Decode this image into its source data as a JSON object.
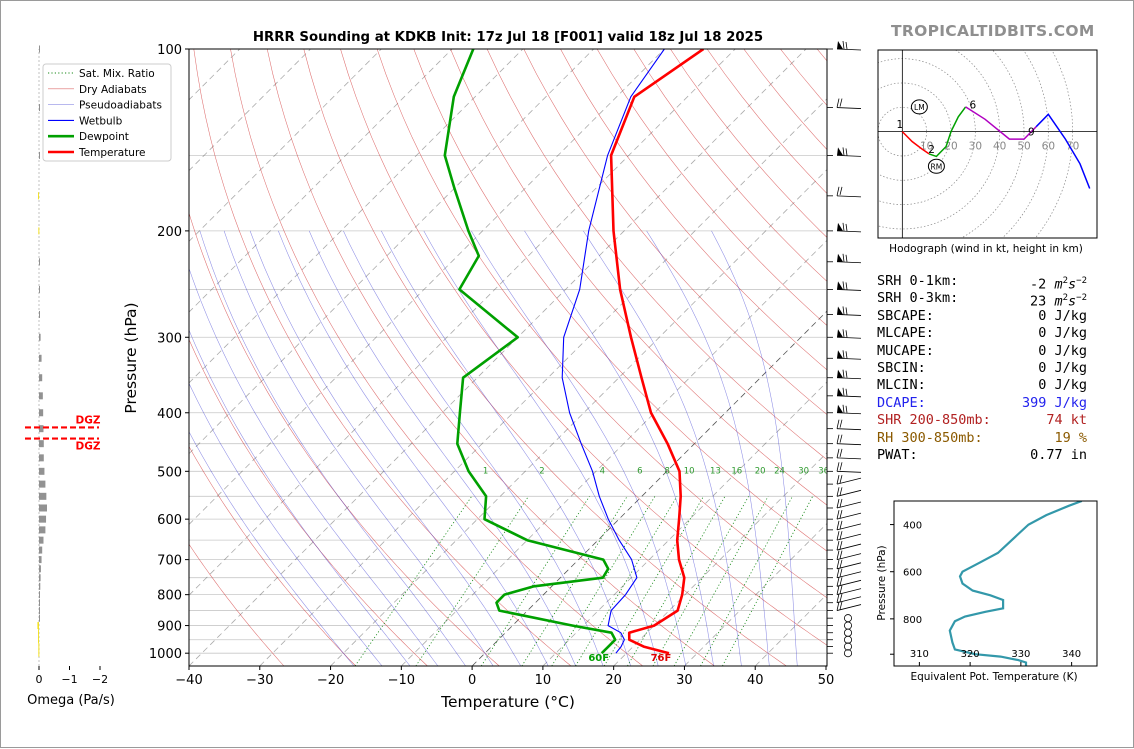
{
  "chart_data": [
    {
      "type": "skew-t",
      "title": "HRRR Sounding at KDKB Init: 17z Jul 18 [F001] valid 18z Jul 18 2025",
      "xlabel": "Temperature (°C)",
      "ylabel": "Pressure (hPa)",
      "xlim": [
        -40,
        50
      ],
      "ylim": [
        1050,
        100
      ],
      "xticks": [
        "−40",
        "−30",
        "−20",
        "−10",
        "0",
        "10",
        "20",
        "30",
        "40",
        "50"
      ],
      "yticks": [
        "100",
        "200",
        "300",
        "400",
        "500",
        "600",
        "700",
        "800",
        "900",
        "1000"
      ],
      "grid": true,
      "legend_position": "top-left",
      "legend": [
        "Sat. Mix. Ratio",
        "Dry Adiabats",
        "Pseudoadiabats",
        "Wetbulb",
        "Dewpoint",
        "Temperature"
      ],
      "mixing_ratio_labels": [
        "1",
        "2",
        "4",
        "6",
        "8",
        "10",
        "13",
        "16",
        "20",
        "24",
        "30",
        "36"
      ],
      "surface_labels": {
        "dewpoint": "60F",
        "temperature": "76F"
      },
      "series": [
        {
          "name": "Temperature",
          "color": "#ff0000",
          "points": [
            [
              1000,
              26
            ],
            [
              975,
              21.5
            ],
            [
              950,
              18.5
            ],
            [
              925,
              17.5
            ],
            [
              900,
              20
            ],
            [
              850,
              21.2
            ],
            [
              800,
              19.6
            ],
            [
              750,
              17.5
            ],
            [
              700,
              14.2
            ],
            [
              650,
              11.2
            ],
            [
              600,
              8.5
            ],
            [
              550,
              5.5
            ],
            [
              500,
              1.8
            ],
            [
              450,
              -3.8
            ],
            [
              400,
              -10.5
            ],
            [
              350,
              -16.8
            ],
            [
              300,
              -24
            ],
            [
              250,
              -32.3
            ],
            [
              200,
              -41.5
            ],
            [
              150,
              -52.5
            ],
            [
              120,
              -57.5
            ],
            [
              100,
              -54.5
            ]
          ]
        },
        {
          "name": "Dewpoint",
          "color": "#00a000",
          "points": [
            [
              1000,
              16.5
            ],
            [
              975,
              16.5
            ],
            [
              950,
              16.5
            ],
            [
              925,
              15
            ],
            [
              900,
              8.5
            ],
            [
              850,
              -4
            ],
            [
              825,
              -5.5
            ],
            [
              800,
              -5.5
            ],
            [
              775,
              -2.5
            ],
            [
              750,
              6
            ],
            [
              725,
              5.5
            ],
            [
              700,
              3.5
            ],
            [
              650,
              -10
            ],
            [
              600,
              -19
            ],
            [
              550,
              -22
            ],
            [
              500,
              -28
            ],
            [
              450,
              -33.5
            ],
            [
              400,
              -37.5
            ],
            [
              350,
              -42
            ],
            [
              300,
              -40
            ],
            [
              250,
              -55
            ],
            [
              220,
              -57
            ],
            [
              200,
              -62
            ],
            [
              170,
              -70
            ],
            [
              150,
              -76
            ],
            [
              120,
              -83
            ],
            [
              100,
              -87
            ]
          ]
        },
        {
          "name": "Wetbulb",
          "color": "#0000ff",
          "points": [
            [
              1000,
              18.5
            ],
            [
              975,
              18.3
            ],
            [
              950,
              17.8
            ],
            [
              925,
              16.3
            ],
            [
              900,
              13.5
            ],
            [
              850,
              11.8
            ],
            [
              800,
              11.6
            ],
            [
              750,
              10.8
            ],
            [
              700,
              7.5
            ],
            [
              650,
              3
            ],
            [
              600,
              -1.5
            ],
            [
              550,
              -6
            ],
            [
              500,
              -10.5
            ],
            [
              450,
              -16
            ],
            [
              400,
              -22
            ],
            [
              350,
              -28
            ],
            [
              300,
              -33.5
            ],
            [
              250,
              -38
            ],
            [
              200,
              -45
            ],
            [
              150,
              -53
            ],
            [
              120,
              -58
            ],
            [
              100,
              -60
            ]
          ]
        }
      ]
    },
    {
      "type": "line",
      "title": "Hodograph (wind in kt, height in km)",
      "xlim": [
        -10,
        80
      ],
      "ylim": [
        -43,
        33
      ],
      "ring_labels": [
        "10",
        "20",
        "30",
        "40",
        "50",
        "60",
        "70"
      ],
      "height_labels": [
        "1",
        "2",
        "3",
        "6",
        "9"
      ],
      "markers": [
        "LM",
        "RM"
      ],
      "series": [
        {
          "name": "",
          "color": "#ff0000",
          "points": [
            [
              0,
              0
            ],
            [
              4,
              -4
            ],
            [
              8,
              -7
            ],
            [
              11,
              -9
            ]
          ]
        },
        {
          "name": "",
          "color": "#00a000",
          "points": [
            [
              11,
              -9
            ],
            [
              14,
              -10
            ],
            [
              18,
              -6
            ],
            [
              20,
              0
            ],
            [
              23,
              6
            ],
            [
              26,
              10
            ]
          ]
        },
        {
          "name": "",
          "color": "#b000c0",
          "points": [
            [
              26,
              10
            ],
            [
              34,
              5
            ],
            [
              44,
              -3
            ],
            [
              50,
              -3
            ],
            [
              55,
              2
            ]
          ]
        },
        {
          "name": "",
          "color": "#0000ff",
          "points": [
            [
              55,
              2
            ],
            [
              60,
              7
            ],
            [
              67,
              -3
            ],
            [
              73,
              -13
            ],
            [
              77,
              -23
            ]
          ]
        }
      ]
    },
    {
      "type": "line",
      "xlabel": "Equivalent Pot. Temperature (K)",
      "ylabel": "Pressure (hPa)",
      "xlim": [
        305,
        345
      ],
      "ylim": [
        1000,
        300
      ],
      "xticks": [
        "310",
        "320",
        "330",
        "340"
      ],
      "yticks": [
        "400",
        "600",
        "800"
      ],
      "series": [
        {
          "name": "",
          "color": "#3398aa",
          "points": [
            [
              1000,
              331
            ],
            [
              985,
              331
            ],
            [
              975,
              329.5
            ],
            [
              960,
              326
            ],
            [
              950,
              321
            ],
            [
              930,
              317
            ],
            [
              900,
              316.5
            ],
            [
              850,
              316
            ],
            [
              810,
              317
            ],
            [
              790,
              319
            ],
            [
              770,
              323
            ],
            [
              755,
              326.5
            ],
            [
              720,
              326.5
            ],
            [
              700,
              324
            ],
            [
              680,
              320.5
            ],
            [
              650,
              318.5
            ],
            [
              620,
              318
            ],
            [
              600,
              318.5
            ],
            [
              560,
              322
            ],
            [
              520,
              325.5
            ],
            [
              480,
              327.5
            ],
            [
              440,
              329.5
            ],
            [
              400,
              331.5
            ],
            [
              360,
              335
            ],
            [
              320,
              339.5
            ],
            [
              300,
              342
            ]
          ]
        }
      ]
    },
    {
      "type": "bar",
      "xlabel": "Omega (Pa/s)",
      "xticks": [
        "0",
        "−1",
        "−2"
      ],
      "xlim": [
        0.2,
        -2.1
      ],
      "dgz_label": "DGZ",
      "dgz_layer_hpa": [
        415,
        455
      ],
      "categories": [
        1000,
        975,
        950,
        925,
        900,
        875,
        850,
        825,
        800,
        775,
        750,
        725,
        700,
        675,
        650,
        625,
        600,
        575,
        550,
        525,
        500,
        475,
        450,
        425,
        400,
        375,
        350,
        325,
        300,
        275,
        250,
        225,
        200,
        175,
        150,
        125,
        100
      ],
      "values": [
        0.02,
        0.02,
        0.03,
        0.03,
        0.05,
        0.0,
        -0.02,
        -0.03,
        -0.03,
        -0.04,
        -0.05,
        -0.06,
        -0.08,
        -0.1,
        -0.14,
        -0.2,
        -0.22,
        -0.25,
        -0.23,
        -0.2,
        -0.17,
        -0.15,
        -0.15,
        -0.14,
        -0.13,
        -0.12,
        -0.1,
        -0.08,
        -0.05,
        -0.03,
        -0.02,
        -0.01,
        0.02,
        0.03,
        0.0,
        -0.02,
        -0.03
      ]
    }
  ],
  "branding": "TROPICALTIDBITS.COM",
  "barb_levels": [
    100,
    125,
    150,
    175,
    200,
    225,
    250,
    275,
    300,
    325,
    350,
    375,
    400,
    425,
    450,
    475,
    500,
    525,
    550,
    575,
    600,
    625,
    650,
    675,
    700,
    725,
    750,
    775,
    800,
    825,
    850,
    875,
    900,
    925,
    950,
    975,
    1000
  ],
  "params": [
    {
      "label": "SRH 0-1km:",
      "value": "-2",
      "unit": "m2/s2",
      "color": "#000000"
    },
    {
      "label": "SRH 0-3km:",
      "value": "23",
      "unit": "m2/s2",
      "color": "#000000"
    },
    {
      "label": "SBCAPE:",
      "value": "0 J/kg",
      "color": "#000000"
    },
    {
      "label": "MLCAPE:",
      "value": "0 J/kg",
      "color": "#000000"
    },
    {
      "label": "MUCAPE:",
      "value": "0 J/kg",
      "color": "#000000"
    },
    {
      "label": "SBCIN:",
      "value": "0 J/kg",
      "color": "#000000"
    },
    {
      "label": "MLCIN:",
      "value": "0 J/kg",
      "color": "#000000"
    },
    {
      "label": "DCAPE:",
      "value": "399 J/kg",
      "color": "#2222ee"
    },
    {
      "label": "SHR 200-850mb:",
      "value": "74 kt",
      "color": "#b22222"
    },
    {
      "label": "RH 300-850mb:",
      "value": "19 %",
      "color": "#8b5a00"
    },
    {
      "label": "PWAT:",
      "value": "0.77 in",
      "color": "#000000"
    }
  ]
}
